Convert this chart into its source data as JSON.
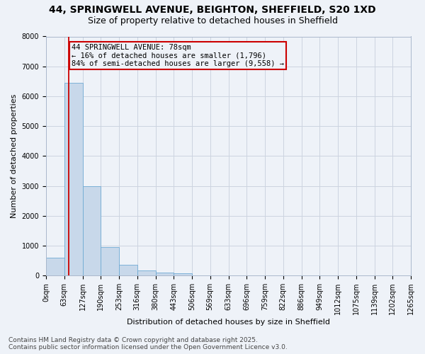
{
  "title": "44, SPRINGWELL AVENUE, BEIGHTON, SHEFFIELD, S20 1XD",
  "subtitle": "Size of property relative to detached houses in Sheffield",
  "xlabel": "Distribution of detached houses by size in Sheffield",
  "ylabel": "Number of detached properties",
  "bar_values": [
    600,
    6450,
    3000,
    950,
    350,
    175,
    100,
    70,
    10,
    5,
    3,
    2,
    1,
    1,
    0,
    0,
    0,
    0,
    0,
    0
  ],
  "bin_edges": [
    0,
    63,
    127,
    190,
    253,
    316,
    380,
    443,
    506,
    569,
    633,
    696,
    759,
    822,
    886,
    949,
    1012,
    1075,
    1139,
    1202,
    1265
  ],
  "tick_labels": [
    "0sqm",
    "63sqm",
    "127sqm",
    "190sqm",
    "253sqm",
    "316sqm",
    "380sqm",
    "443sqm",
    "506sqm",
    "569sqm",
    "633sqm",
    "696sqm",
    "759sqm",
    "822sqm",
    "886sqm",
    "949sqm",
    "1012sqm",
    "1075sqm",
    "1139sqm",
    "1202sqm",
    "1265sqm"
  ],
  "bar_color": "#c8d8ea",
  "bar_edge_color": "#6faad4",
  "grid_color": "#ccd4e0",
  "background_color": "#eef2f8",
  "property_size": 78,
  "annotation_line1": "44 SPRINGWELL AVENUE: 78sqm",
  "annotation_line2": "← 16% of detached houses are smaller (1,796)",
  "annotation_line3": "84% of semi-detached houses are larger (9,558) →",
  "vline_color": "#cc0000",
  "annotation_box_edgecolor": "#cc0000",
  "annotation_text_color": "#000000",
  "ylim": [
    0,
    8000
  ],
  "yticks": [
    0,
    1000,
    2000,
    3000,
    4000,
    5000,
    6000,
    7000,
    8000
  ],
  "footer_line1": "Contains HM Land Registry data © Crown copyright and database right 2025.",
  "footer_line2": "Contains public sector information licensed under the Open Government Licence v3.0.",
  "title_fontsize": 10,
  "subtitle_fontsize": 9,
  "axis_label_fontsize": 8,
  "tick_fontsize": 7,
  "annotation_fontsize": 7.5,
  "footer_fontsize": 6.5
}
